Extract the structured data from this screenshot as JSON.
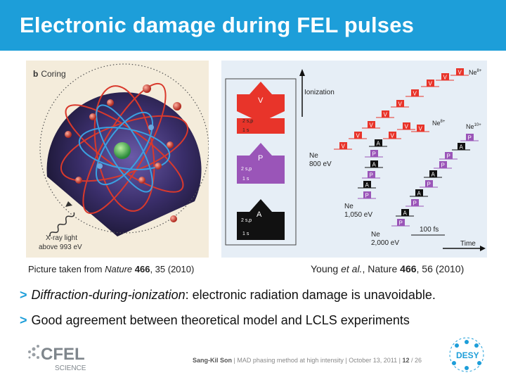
{
  "slide": {
    "title": "Electronic damage during FEL pulses"
  },
  "figure_left": {
    "panel_label": "b",
    "panel_word": "Coring",
    "xray_line1": "X-ray light",
    "xray_line2": "above 993 eV",
    "caption_prefix": "Picture taken from ",
    "caption_journal": "Nature",
    "caption_volume": " 466",
    "caption_suffix": ", 35 (2010)"
  },
  "figure_right": {
    "ionization": "Ionization",
    "ne800_line1": "Ne",
    "ne800_line2": "800 eV",
    "ne1050_line1": "Ne",
    "ne1050_line2": "1,050 eV",
    "ne2000_line1": "Ne",
    "ne2000_line2": "2,000 eV",
    "ne8_top_base": "Ne",
    "ne8_top_sup": "8+",
    "ne8_mid_base": "Ne",
    "ne8_mid_sup": "8+",
    "ne10_base": "Ne",
    "ne10_sup": "10+",
    "scale_bar": "100 fs",
    "time": "Time",
    "legend_v": "V",
    "legend_p": "P",
    "legend_a": "A",
    "orbital_2sp": "2 s,p",
    "orbital_1s": "1 s",
    "step_v": "V",
    "step_p": "P",
    "step_a": "A",
    "caption_authors": "Young ",
    "caption_etal": "et al.",
    "caption_journal": ", Nature",
    "caption_volume": " 466",
    "caption_suffix": ", 56 (2010)"
  },
  "bullets": [
    {
      "marker": ">",
      "italic": "Diffraction-during-ionization",
      "text": ": electronic radiation damage is unavoidable."
    },
    {
      "marker": ">",
      "text": "Good agreement between theoretical model and LCLS experiments"
    }
  ],
  "footer": {
    "author": "Sang-Kil Son",
    "talk": "  |  MAD phasing method at high intensity  |  October 13, 2011  |  ",
    "page": "12",
    "total": " / 26"
  },
  "logos": {
    "cfel_text": "CFEL",
    "cfel_sub": "SCIENCE",
    "desy_text": "DESY"
  },
  "colors": {
    "header": "#1d9ed9",
    "valence": "#e8342a",
    "photo": "#9a55b8",
    "auger": "#111111"
  }
}
